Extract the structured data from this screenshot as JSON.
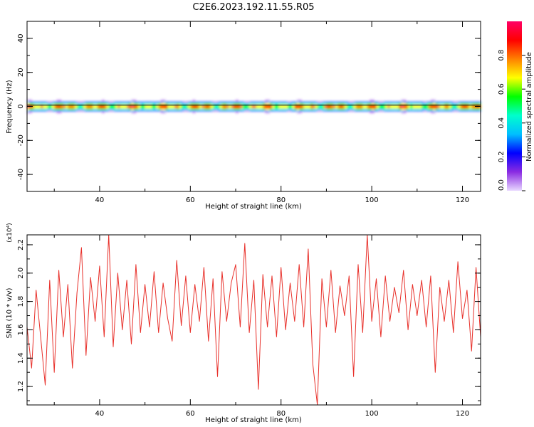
{
  "figure": {
    "title": "C2E6.2023.192.11.55.R05"
  },
  "chart_data": [
    {
      "type": "heatmap",
      "xlabel": "Height of straight line (km)",
      "ylabel": "Frequency (Hz)",
      "xlim": [
        24,
        124
      ],
      "ylim": [
        -50,
        50
      ],
      "xticks": [
        "40",
        "60",
        "80",
        "100",
        "120"
      ],
      "yticks": [
        "-40",
        "-20",
        "0",
        "20",
        "40"
      ],
      "band_center_hz": 0,
      "band_halfwidth_hz": 5,
      "grid": false,
      "colorbar": {
        "label": "Normalized spectral amplitude",
        "range": [
          0,
          1
        ],
        "ticks": [
          "0.0",
          "0.2",
          "0.4",
          "0.6",
          "0.8"
        ],
        "colormap": [
          "#e8d8ff",
          "#8a2be2",
          "#0000ff",
          "#00bfff",
          "#00ffcc",
          "#00ff00",
          "#ffff00",
          "#ff8000",
          "#ff0000",
          "#ff0066"
        ]
      }
    },
    {
      "type": "line",
      "xlabel": "Height of straight line (km)",
      "ylabel": "SNR (10 * v/v)",
      "y_multiplier": "(x10⁴)",
      "xlim": [
        24,
        124
      ],
      "ylim": [
        1.07,
        2.27
      ],
      "xticks": [
        "40",
        "60",
        "80",
        "100",
        "120"
      ],
      "yticks": [
        "1.2",
        "1.4",
        "1.6",
        "1.8",
        "2.0",
        "2.2"
      ],
      "line_color": "#e8302a",
      "grid": false,
      "series": [
        {
          "x": [
            24,
            25,
            26,
            27,
            28,
            29,
            30,
            31,
            32,
            33,
            34,
            35,
            36,
            37,
            38,
            39,
            40,
            41,
            42,
            43,
            44,
            45,
            46,
            47,
            48,
            49,
            50,
            51,
            52,
            53,
            54,
            55,
            56,
            57,
            58,
            59,
            60,
            61,
            62,
            63,
            64,
            65,
            66,
            67,
            68,
            69,
            70,
            71,
            72,
            73,
            74,
            75,
            76,
            77,
            78,
            79,
            80,
            81,
            82,
            83,
            84,
            85,
            86,
            87,
            88,
            89,
            90,
            91,
            92,
            93,
            94,
            95,
            96,
            97,
            98,
            99,
            100,
            101,
            102,
            103,
            104,
            105,
            106,
            107,
            108,
            109,
            110,
            111,
            112,
            113,
            114,
            115,
            116,
            117,
            118,
            119,
            120,
            121,
            122,
            123,
            124
          ],
          "values": [
            1.62,
            1.33,
            1.88,
            1.55,
            1.21,
            1.95,
            1.3,
            2.02,
            1.55,
            1.92,
            1.33,
            1.86,
            2.18,
            1.42,
            1.97,
            1.66,
            2.05,
            1.55,
            2.27,
            1.48,
            2.0,
            1.6,
            1.95,
            1.5,
            2.06,
            1.58,
            1.92,
            1.62,
            2.01,
            1.58,
            1.93,
            1.68,
            1.52,
            2.09,
            1.63,
            1.98,
            1.58,
            1.92,
            1.66,
            2.04,
            1.52,
            1.96,
            1.27,
            2.01,
            1.66,
            1.93,
            2.06,
            1.62,
            2.21,
            1.58,
            1.95,
            1.18,
            1.99,
            1.62,
            1.98,
            1.55,
            2.04,
            1.6,
            1.93,
            1.66,
            2.06,
            1.62,
            2.17,
            1.36,
            1.07,
            1.96,
            1.62,
            2.02,
            1.58,
            1.91,
            1.7,
            1.98,
            1.27,
            2.06,
            1.58,
            2.27,
            1.66,
            1.96,
            1.55,
            1.98,
            1.66,
            1.9,
            1.72,
            2.02,
            1.6,
            1.92,
            1.7,
            1.95,
            1.62,
            1.98,
            1.3,
            1.9,
            1.66,
            1.95,
            1.58,
            2.08,
            1.68,
            1.88,
            1.45,
            2.04,
            1.55
          ]
        }
      ]
    }
  ]
}
